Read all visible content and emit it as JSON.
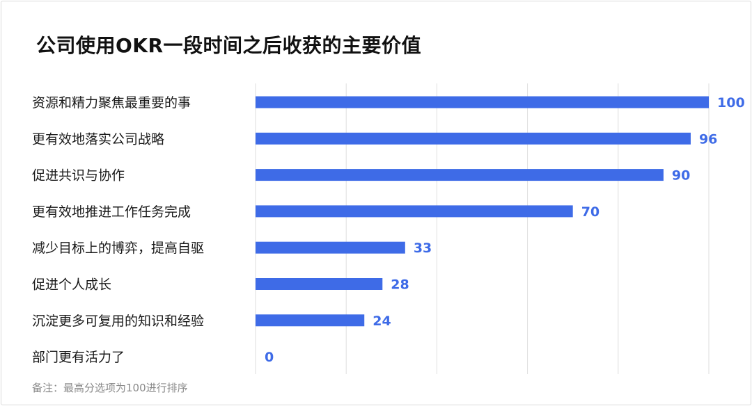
{
  "title": "公司使用OKR一段时间之后收获的主要价值",
  "note": "备注：最高分选项为100进行排序",
  "colors": {
    "bar": "#3e6be7",
    "value_label": "#3e6be7",
    "grid": "#dedede",
    "category_text": "#1a1a1a",
    "note_text": "#8a8a8a"
  },
  "chart_data": {
    "type": "bar",
    "orientation": "horizontal",
    "title": "公司使用OKR一段时间之后收获的主要价值",
    "categories": [
      "资源和精力聚焦最重要的事",
      "更有效地落实公司战略",
      "促进共识与协作",
      "更有效地推进工作任务完成",
      "减少目标上的博弈，提高自驱",
      "促进个人成长",
      "沉淀更多可复用的知识和经验",
      "部门更有活力了"
    ],
    "values": [
      100,
      96,
      90,
      70,
      33,
      28,
      24,
      0
    ],
    "xlim": [
      0,
      100
    ],
    "xticks": [
      0,
      20,
      40,
      60,
      80,
      100
    ],
    "grid": true,
    "data_labels": true,
    "legend": "none",
    "xlabel": "",
    "ylabel": ""
  }
}
